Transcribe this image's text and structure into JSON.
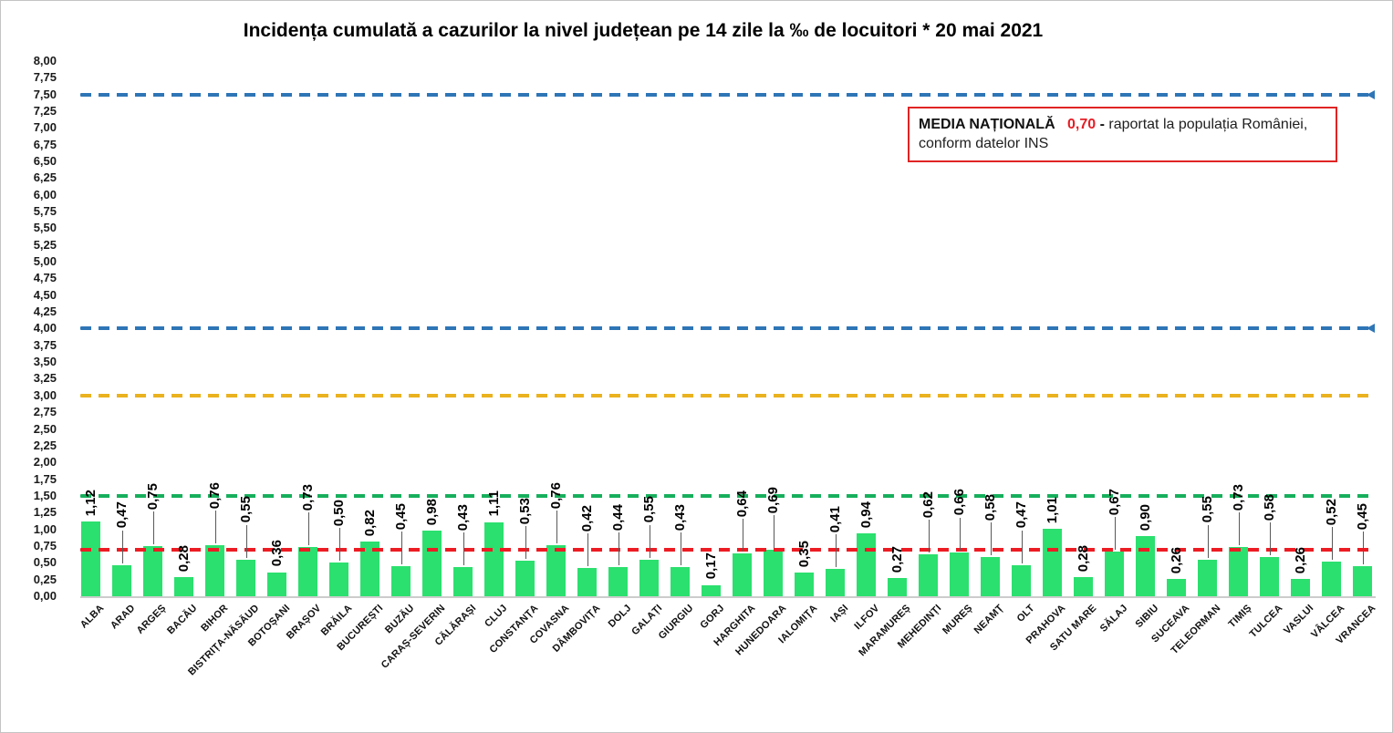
{
  "title": "Incidența cumulată a cazurilor la nivel județean pe 14 zile la ‰ de locuitori *  20 mai 2021",
  "annotation": {
    "label": "MEDIA NAȚIONALĂ",
    "value": "0,70",
    "separator": "-",
    "line1_rest": "raportat la populația României,",
    "line2": "conform datelor INS",
    "value_color": "#e41e26",
    "border_color": "#e02424"
  },
  "chart_data": {
    "type": "bar",
    "title": "Incidența cumulată a cazurilor la nivel județean pe 14 zile la ‰ de locuitori *  20 mai 2021",
    "categories": [
      "ALBA",
      "ARAD",
      "ARGEȘ",
      "BACĂU",
      "BIHOR",
      "BISTRIȚA-NĂSĂUD",
      "BOTOȘANI",
      "BRAȘOV",
      "BRĂILA",
      "BUCUREȘTI",
      "BUZĂU",
      "CARAȘ-SEVERIN",
      "CĂLĂRAȘI",
      "CLUJ",
      "CONSTANȚA",
      "COVASNA",
      "DÂMBOVIȚA",
      "DOLJ",
      "GALAȚI",
      "GIURGIU",
      "GORJ",
      "HARGHITA",
      "HUNEDOARA",
      "IALOMIȚA",
      "IAȘI",
      "ILFOV",
      "MARAMUREȘ",
      "MEHEDINȚI",
      "MUREȘ",
      "NEAMȚ",
      "OLT",
      "PRAHOVA",
      "SATU MARE",
      "SĂLAJ",
      "SIBIU",
      "SUCEAVA",
      "TELEORMAN",
      "TIMIȘ",
      "TULCEA",
      "VASLUI",
      "VÂLCEA",
      "VRANCEA"
    ],
    "values": [
      1.12,
      0.47,
      0.75,
      0.28,
      0.76,
      0.55,
      0.36,
      0.73,
      0.5,
      0.82,
      0.45,
      0.98,
      0.43,
      1.11,
      0.53,
      0.76,
      0.42,
      0.44,
      0.55,
      0.43,
      0.17,
      0.64,
      0.69,
      0.35,
      0.41,
      0.94,
      0.27,
      0.62,
      0.66,
      0.58,
      0.47,
      1.01,
      0.28,
      0.67,
      0.9,
      0.26,
      0.55,
      0.73,
      0.58,
      0.26,
      0.52,
      0.45
    ],
    "bar_color": "#2be06e",
    "value_label_decimal": "comma",
    "xlabel": "",
    "ylabel": "",
    "ylim": [
      0,
      8
    ],
    "ytick_step": 0.25,
    "grid": false,
    "legend_position": "none",
    "reference_lines": [
      {
        "value": 7.5,
        "color": "#2e75b6",
        "style": "dashed",
        "arrow": true,
        "label": ""
      },
      {
        "value": 4.0,
        "color": "#2e75b6",
        "style": "dashed",
        "arrow": true,
        "label": ""
      },
      {
        "value": 3.0,
        "color": "#eab21f",
        "style": "dashed",
        "arrow": false,
        "label": ""
      },
      {
        "value": 1.5,
        "color": "#17af5d",
        "style": "dashed",
        "arrow": false,
        "label": ""
      },
      {
        "value": 0.7,
        "color": "#ec1c24",
        "style": "dashed",
        "arrow": false,
        "label": "MEDIA NAȚIONALĂ"
      }
    ]
  }
}
